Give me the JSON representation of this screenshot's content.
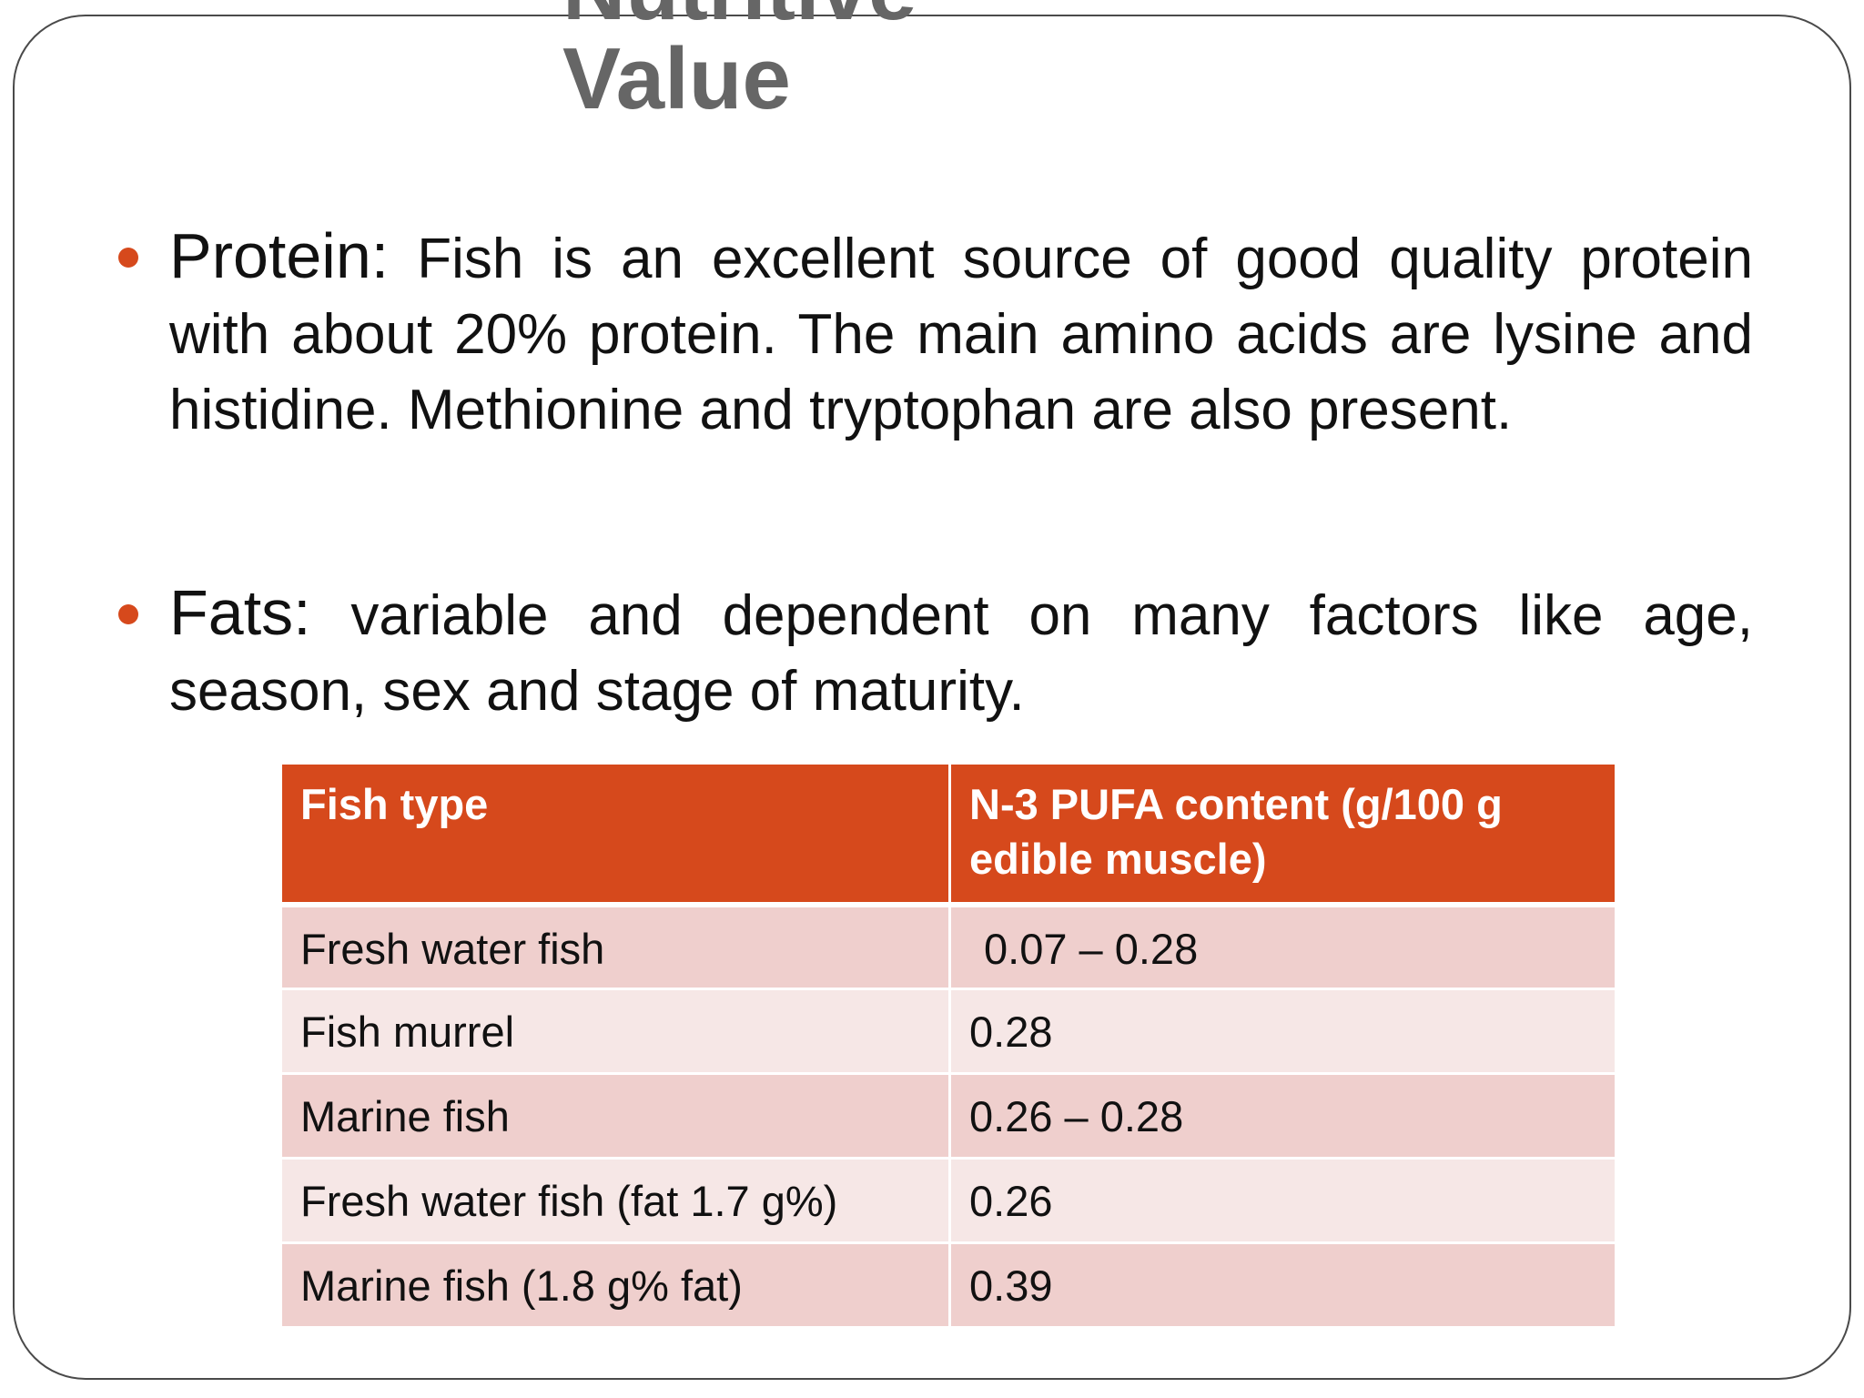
{
  "slide": {
    "title_line1": "Nutritive",
    "title_line2": "Value"
  },
  "bullets": [
    {
      "term": "Protein:",
      "text": " Fish is an excellent source of good quality protein with about 20% protein. The main amino acids are lysine and histidine. Methionine and tryptophan are also present."
    },
    {
      "term": "Fats:",
      "text": " variable and dependent on many factors like age, season, sex and stage of maturity."
    }
  ],
  "table": {
    "headers": [
      "Fish type",
      "N-3 PUFA content (g/100 g edible muscle)"
    ],
    "rows": [
      [
        "Fresh water fish",
        "0.07 – 0.28"
      ],
      [
        "Fish murrel",
        "0.28"
      ],
      [
        "Marine fish",
        "0.26 – 0.28"
      ],
      [
        "Fresh water fish (fat 1.7 g%)",
        "0.26"
      ],
      [
        "Marine fish (1.8 g% fat)",
        "0.39"
      ]
    ],
    "colors": {
      "header_bg": "#d6491c",
      "row_odd_bg": "#efcfcd",
      "row_even_bg": "#f6e7e6",
      "bullet_color": "#d6491c",
      "title_color": "#666666"
    }
  }
}
